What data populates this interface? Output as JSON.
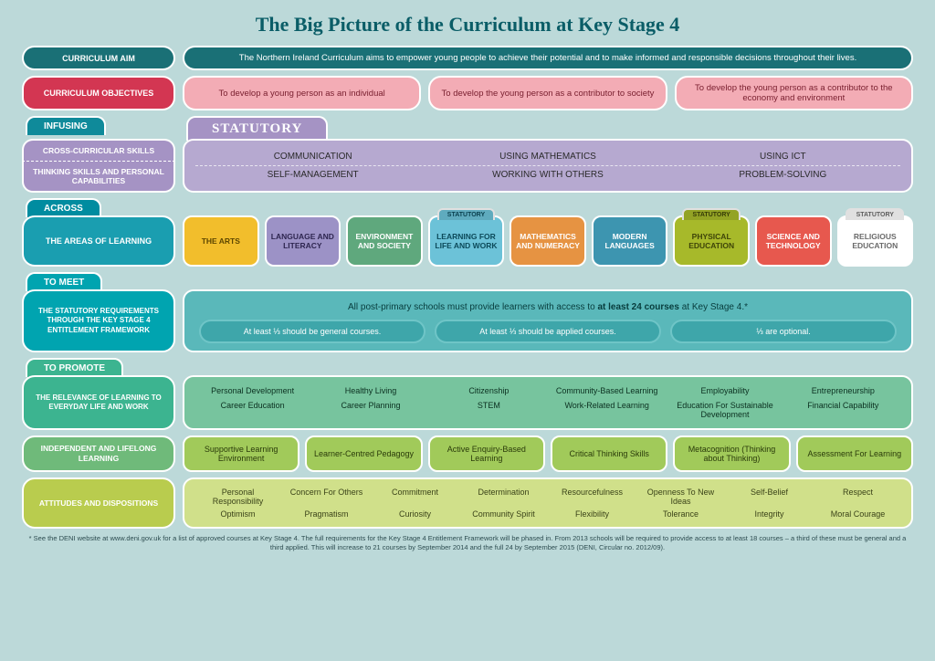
{
  "title": "The Big Picture of the Curriculum at Key Stage 4",
  "colors": {
    "teal_dark": "#1a7076",
    "crimson": "#d33652",
    "pink": "#f3acb5",
    "purple_side": "#a593c4",
    "purple_panel": "#b6a9d0",
    "areas_side": "#1a9eb0"
  },
  "aim": {
    "label": "CURRICULUM AIM",
    "text": "The Northern Ireland Curriculum aims to empower young people to achieve their potential and to make informed and responsible decisions throughout their lives."
  },
  "objectives": {
    "label": "CURRICULUM OBJECTIVES",
    "items": [
      "To develop a young person as an individual",
      "To develop the young person as a contributor to society",
      "To develop the young person as a contributor to the economy and environment"
    ]
  },
  "infusing": {
    "tab": "INFUSING",
    "statutory_tab": "STATUTORY",
    "cross_label": "CROSS-CURRICULAR SKILLS",
    "thinking_label": "THINKING SKILLS AND PERSONAL CAPABILITIES",
    "row1": [
      "COMMUNICATION",
      "USING MATHEMATICS",
      "USING ICT"
    ],
    "row2": [
      "SELF-MANAGEMENT",
      "WORKING WITH OTHERS",
      "PROBLEM-SOLVING"
    ]
  },
  "across": {
    "tab": "ACROSS",
    "side": "THE AREAS OF LEARNING",
    "areas": [
      {
        "label": "THE ARTS",
        "bg": "#f2be2c",
        "fg": "#5e4700",
        "statutory": false
      },
      {
        "label": "LANGUAGE AND LITERACY",
        "bg": "#9c92c6",
        "fg": "#2e2650",
        "statutory": false
      },
      {
        "label": "ENVIRONMENT AND SOCIETY",
        "bg": "#5fa87d",
        "fg": "#ffffff",
        "statutory": false
      },
      {
        "label": "LEARNING FOR LIFE AND WORK",
        "bg": "#6cc2d8",
        "fg": "#0c4a5a",
        "statutory": true
      },
      {
        "label": "MATHEMATICS AND NUMERACY",
        "bg": "#e69342",
        "fg": "#ffffff",
        "statutory": false
      },
      {
        "label": "MODERN LANGUAGES",
        "bg": "#3d95b0",
        "fg": "#ffffff",
        "statutory": false
      },
      {
        "label": "PHYSICAL EDUCATION",
        "bg": "#a7b92a",
        "fg": "#3e4408",
        "statutory": true
      },
      {
        "label": "SCIENCE AND TECHNOLOGY",
        "bg": "#e7584e",
        "fg": "#ffffff",
        "statutory": false
      },
      {
        "label": "RELIGIOUS EDUCATION",
        "bg": "#ffffff",
        "fg": "#6a6a6a",
        "statutory": true
      }
    ]
  },
  "tomeet": {
    "tab": "TO MEET",
    "side": "THE STATUTORY REQUIREMENTS THROUGH THE KEY STAGE 4 ENTITLEMENT FRAMEWORK",
    "line_a": "All post-primary schools must provide learners with access to ",
    "line_b": "at least 24 courses",
    "line_c": " at Key Stage 4.*",
    "courses": [
      "At least ⅓ should be general courses.",
      "At least ⅓ should be applied courses.",
      "⅓ are optional."
    ]
  },
  "topromote": {
    "tab": "TO PROMOTE",
    "relevance": {
      "side": "THE RELEVANCE OF LEARNING TO EVERYDAY LIFE AND WORK",
      "bg": "#77c49e",
      "items": [
        "Personal Development",
        "Healthy Living",
        "Citizenship",
        "Community-Based Learning",
        "Employability",
        "Entrepreneurship",
        "Career Education",
        "Career Planning",
        "STEM",
        "Work-Related Learning",
        "Education For Sustainable Development",
        "Financial Capability"
      ]
    },
    "independent": {
      "side": "INDEPENDENT AND LIFELONG LEARNING",
      "side_bg": "#6fba7a",
      "items": [
        "Supportive Learning Environment",
        "Learner-Centred Pedagogy",
        "Active Enquiry-Based Learning",
        "Critical Thinking Skills",
        "Metacognition (Thinking about Thinking)",
        "Assessment For Learning"
      ]
    },
    "attitudes": {
      "side": "ATTITUDES AND DISPOSITIONS",
      "side_bg": "#b9cc4e",
      "bg": "#d0e08a",
      "items": [
        "Personal Responsibility",
        "Concern For Others",
        "Commitment",
        "Determination",
        "Resourcefulness",
        "Openness To New Ideas",
        "Self-Belief",
        "Respect",
        "Optimism",
        "Pragmatism",
        "Curiosity",
        "Community Spirit",
        "Flexibility",
        "Tolerance",
        "Integrity",
        "Moral Courage"
      ]
    }
  },
  "footnote": "* See the DENI website at www.deni.gov.uk for a list of approved courses at Key Stage 4. The full requirements for the Key Stage 4 Entitlement Framework will be phased in. From 2013 schools will be required to provide access to at least 18 courses – a third of these must be general and a third applied. This will increase to 21 courses by September 2014 and the full 24 by September 2015 (DENI, Circular no. 2012/09)."
}
